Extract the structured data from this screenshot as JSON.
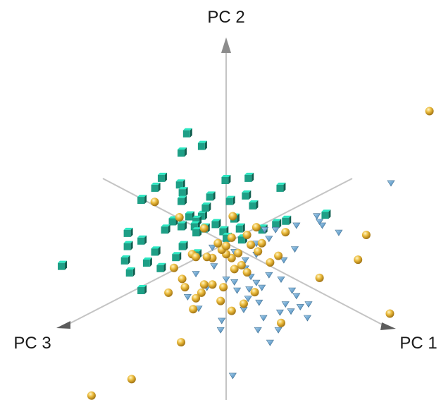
{
  "chart_data": {
    "type": "scatter",
    "projection": "3d",
    "title": "",
    "axes": {
      "pc1_label": "PC 1",
      "pc2_label": "PC 2",
      "pc3_label": "PC 3"
    },
    "grid": false,
    "legend": "none",
    "series": [
      {
        "marker": "cube",
        "color": "#1e9f86",
        "points": [
          [
            -0.72,
            1.85
          ],
          [
            -0.45,
            1.62
          ],
          [
            -0.82,
            1.5
          ],
          [
            -1.18,
            1.04
          ],
          [
            -0.85,
            0.92
          ],
          [
            -0.8,
            0.78
          ],
          [
            -0.82,
            0.62
          ],
          [
            -1.3,
            0.86
          ],
          [
            -0.02,
            1.0
          ],
          [
            0.4,
            1.04
          ],
          [
            0.98,
            0.86
          ],
          [
            -0.68,
            0.34
          ],
          [
            -0.45,
            0.35
          ],
          [
            -0.38,
            0.5
          ],
          [
            -0.98,
            0.25
          ],
          [
            -1.55,
            0.64
          ],
          [
            -0.55,
            0.26
          ],
          [
            -0.3,
            0.7
          ],
          [
            0.06,
            0.62
          ],
          [
            0.35,
            0.72
          ],
          [
            0.48,
            0.54
          ],
          [
            -0.82,
            0.16
          ],
          [
            -0.58,
            0.16
          ],
          [
            -0.2,
            0.2
          ],
          [
            0.14,
            0.3
          ],
          [
            -1.8,
            0.04
          ],
          [
            -1.55,
            -0.1
          ],
          [
            -1.12,
            0.1
          ],
          [
            -0.55,
            0.05
          ],
          [
            -0.4,
            0.12
          ],
          [
            -0.06,
            0.07
          ],
          [
            0.24,
            0.12
          ],
          [
            -1.8,
            -0.2
          ],
          [
            -1.3,
            -0.3
          ],
          [
            -0.8,
            -0.2
          ],
          [
            -0.92,
            -0.4
          ],
          [
            -1.3,
            -0.3
          ],
          [
            -1.76,
            -0.68
          ],
          [
            -1.45,
            -0.5
          ],
          [
            -1.2,
            -0.6
          ],
          [
            -3.0,
            -0.56
          ],
          [
            -1.85,
            -0.46
          ],
          [
            -0.55,
            -0.35
          ],
          [
            -1.55,
            -1.0
          ],
          [
            0.0,
            -0.05
          ],
          [
            0.65,
            0.1
          ],
          [
            0.9,
            0.2
          ],
          [
            0.28,
            -0.08
          ],
          [
            1.08,
            0.26
          ],
          [
            1.8,
            0.37
          ]
        ]
      },
      {
        "marker": "diamond",
        "color": "#5fa3d2",
        "points": [
          [
            3.0,
            0.95
          ],
          [
            1.65,
            0.35
          ],
          [
            1.75,
            0.18
          ],
          [
            2.05,
            0.05
          ],
          [
            1.28,
            0.18
          ],
          [
            0.9,
            0.1
          ],
          [
            0.78,
            -0.06
          ],
          [
            0.55,
            -0.15
          ],
          [
            1.25,
            -0.25
          ],
          [
            1.05,
            -0.45
          ],
          [
            0.55,
            -0.35
          ],
          [
            0.78,
            -0.72
          ],
          [
            0.35,
            -0.6
          ],
          [
            0.15,
            -0.85
          ],
          [
            0.0,
            -0.8
          ],
          [
            0.42,
            -0.98
          ],
          [
            0.4,
            -1.15
          ],
          [
            -0.22,
            -0.56
          ],
          [
            -0.35,
            -0.95
          ],
          [
            -0.55,
            -0.7
          ],
          [
            -0.7,
            -1.12
          ],
          [
            -0.5,
            -1.33
          ],
          [
            0.68,
            -1.5
          ],
          [
            1.18,
            -1.38
          ],
          [
            1.48,
            -1.5
          ],
          [
            1.35,
            -1.3
          ],
          [
            1.08,
            -1.25
          ],
          [
            0.95,
            -1.72
          ],
          [
            0.8,
            -1.95
          ],
          [
            0.58,
            -1.72
          ],
          [
            -0.1,
            -1.72
          ],
          [
            -0.08,
            -1.55
          ],
          [
            0.32,
            -1.35
          ],
          [
            0.1,
            -0.4
          ],
          [
            0.15,
            -0.3
          ],
          [
            0.7,
            0.1
          ],
          [
            0.65,
            -0.95
          ],
          [
            0.2,
            -1.0
          ],
          [
            0.35,
            -0.45
          ],
          [
            0.45,
            -0.75
          ],
          [
            0.55,
            -0.86
          ],
          [
            1.0,
            -0.8
          ],
          [
            1.2,
            -1.0
          ],
          [
            1.5,
            -1.25
          ],
          [
            1.28,
            -1.1
          ],
          [
            -0.25,
            -0.22
          ],
          [
            0.12,
            -2.55
          ],
          [
            0.98,
            -1.4
          ],
          [
            1.7,
            0.25
          ],
          [
            0.6,
            -1.22
          ]
        ]
      },
      {
        "marker": "sphere",
        "color": "#e9b53a",
        "points": [
          [
            3.7,
            2.25
          ],
          [
            -1.3,
            0.6
          ],
          [
            -0.85,
            0.32
          ],
          [
            -0.4,
            0.12
          ],
          [
            0.12,
            0.34
          ],
          [
            0.55,
            0.14
          ],
          [
            1.08,
            0.05
          ],
          [
            0.38,
            0.0
          ],
          [
            0.45,
            -0.18
          ],
          [
            0.58,
            -0.3
          ],
          [
            0.22,
            -0.33
          ],
          [
            0.1,
            -0.42
          ],
          [
            0.0,
            -0.35
          ],
          [
            -0.08,
            -0.27
          ],
          [
            -0.25,
            -0.42
          ],
          [
            -0.62,
            -0.35
          ],
          [
            -0.55,
            -0.4
          ],
          [
            -0.35,
            -0.4
          ],
          [
            -0.8,
            -0.8
          ],
          [
            -0.95,
            -0.6
          ],
          [
            -0.75,
            -0.95
          ],
          [
            -0.4,
            -0.9
          ],
          [
            -0.25,
            -0.9
          ],
          [
            -0.05,
            -0.95
          ],
          [
            0.15,
            -0.62
          ],
          [
            0.28,
            -0.55
          ],
          [
            0.38,
            -0.68
          ],
          [
            0.52,
            -1.04
          ],
          [
            0.32,
            -1.25
          ],
          [
            0.1,
            -1.38
          ],
          [
            -0.45,
            -1.05
          ],
          [
            -1.05,
            -1.05
          ],
          [
            -0.55,
            -1.15
          ],
          [
            1.7,
            -0.78
          ],
          [
            2.55,
            0.0
          ],
          [
            2.98,
            -1.43
          ],
          [
            2.4,
            -0.45
          ],
          [
            -0.82,
            -1.95
          ],
          [
            -0.1,
            -1.2
          ],
          [
            -1.72,
            -2.62
          ],
          [
            -2.45,
            -2.92
          ],
          [
            -0.3,
            -3.14
          ],
          [
            1.0,
            -1.6
          ],
          [
            -0.6,
            -1.35
          ],
          [
            0.0,
            -0.2
          ],
          [
            0.1,
            -0.05
          ],
          [
            0.65,
            -0.15
          ],
          [
            0.8,
            -0.5
          ],
          [
            0.95,
            -0.38
          ],
          [
            -0.15,
            -0.15
          ]
        ]
      }
    ]
  }
}
